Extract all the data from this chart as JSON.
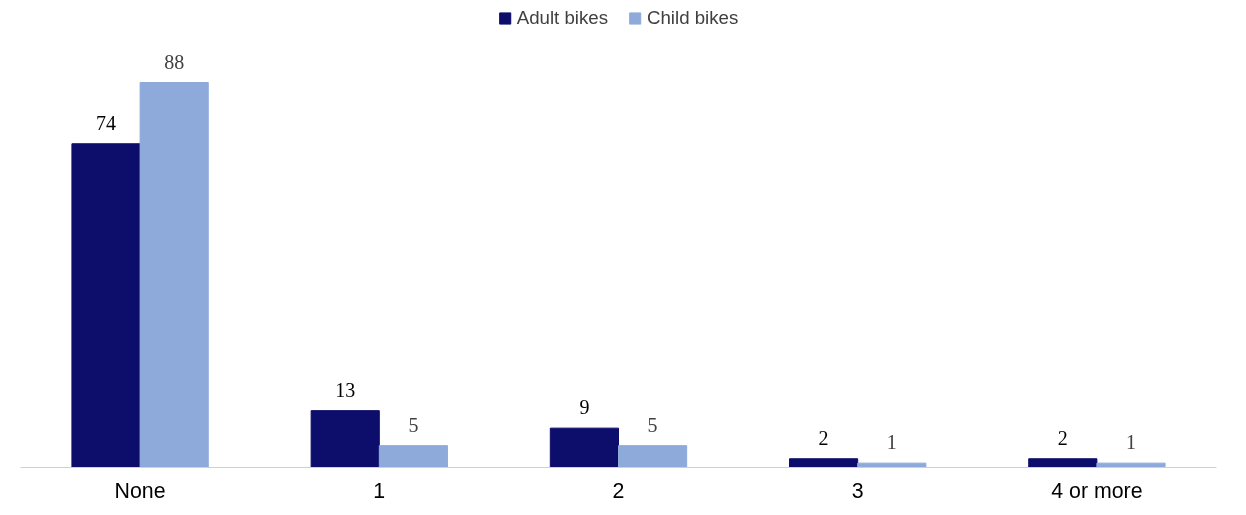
{
  "chart_data": {
    "type": "bar",
    "categories": [
      "None",
      "1",
      "2",
      "3",
      "4 or more"
    ],
    "series": [
      {
        "name": "Adult bikes",
        "color": "#0d0d6b",
        "values": [
          74,
          13,
          9,
          2,
          2
        ]
      },
      {
        "name": "Child bikes",
        "color": "#8eaadb",
        "values": [
          88,
          5,
          5,
          1,
          1
        ]
      }
    ],
    "data_labels": true,
    "legend": "top",
    "grid": false
  }
}
